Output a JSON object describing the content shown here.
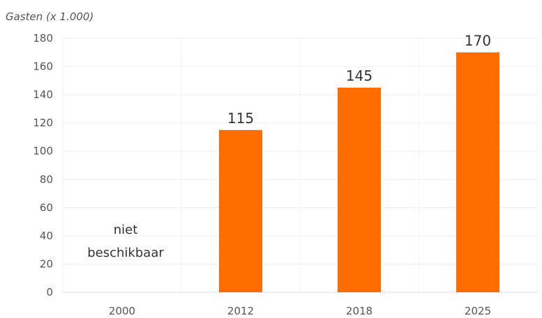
{
  "chart_data": {
    "type": "bar",
    "ylabel": "Gasten (x 1.000)",
    "categories": [
      "2000",
      "2012",
      "2018",
      "2025"
    ],
    "values": [
      null,
      115,
      145,
      170
    ],
    "data_labels": [
      "",
      "115",
      "145",
      "170"
    ],
    "missing_note": [
      "niet",
      "beschikbaar"
    ],
    "ylim": [
      0,
      180
    ],
    "yticks": [
      "0",
      "20",
      "40",
      "60",
      "80",
      "100",
      "120",
      "140",
      "160",
      "180"
    ],
    "grid": true,
    "bar_color": "#ff6d00"
  }
}
